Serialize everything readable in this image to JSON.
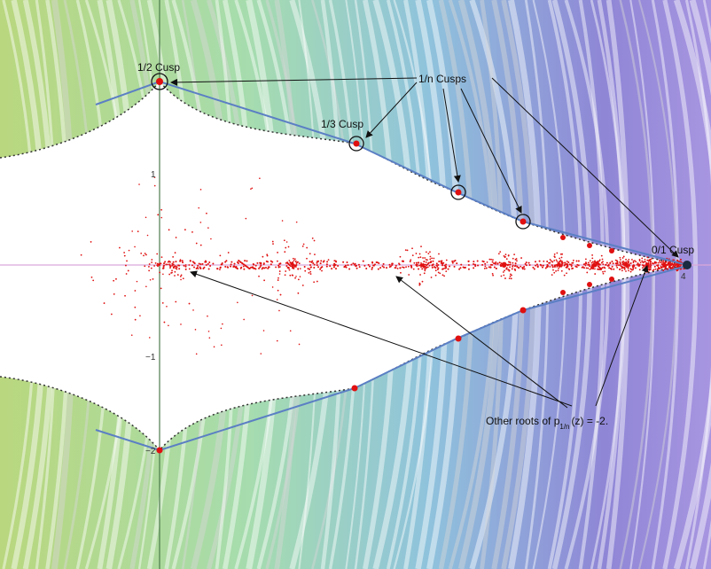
{
  "labels": {
    "half_cusp": "1/2 Cusp",
    "n_cusps": "1/n Cusps",
    "third_cusp": "1/3 Cusp",
    "zero_cusp": "0/1 Cusp",
    "other_roots": {
      "prefix": "Other roots of p",
      "subscript": "1/n",
      "suffix": "(z) = -2."
    }
  },
  "axis_labels": [
    "1",
    "−1",
    "−2",
    "4"
  ]
}
